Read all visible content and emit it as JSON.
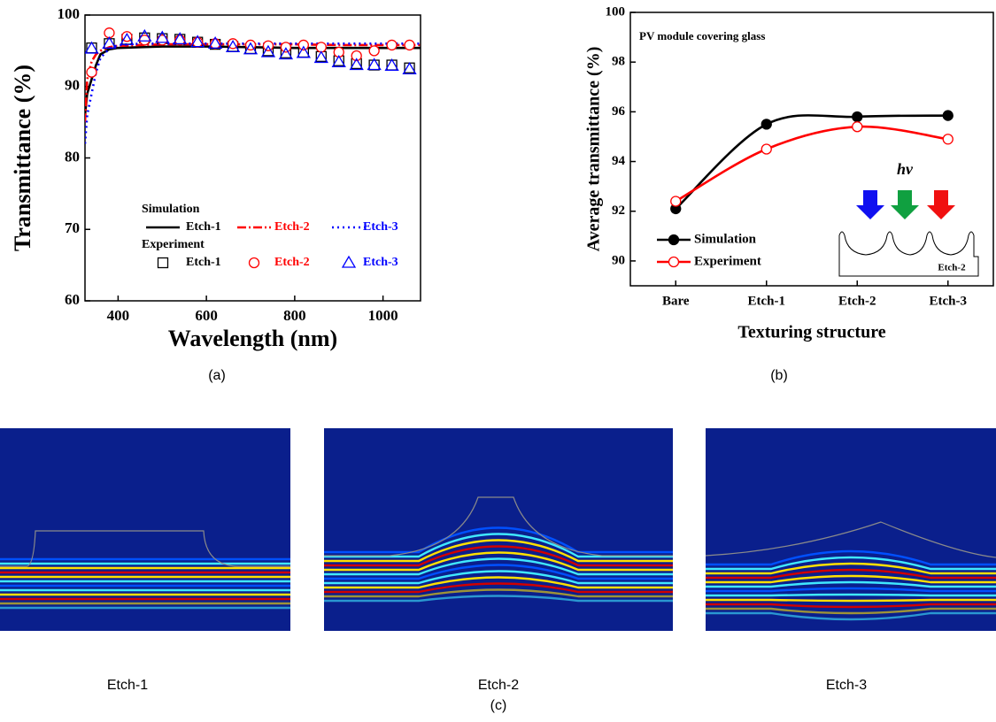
{
  "chart_data": [
    {
      "type": "line",
      "caption": "(a)",
      "x_label": "Wavelength (nm)",
      "y_label": "Transmittance (%)",
      "xlim": [
        325,
        1085
      ],
      "xticks": [
        400,
        600,
        800,
        1000
      ],
      "ylim": [
        60,
        100
      ],
      "yticks": [
        60,
        70,
        80,
        90,
        100
      ],
      "legend_position": "lower center",
      "series_groups": [
        {
          "name": "Simulation",
          "type": "line",
          "x": [
            325,
            330,
            340,
            350,
            360,
            380,
            400,
            450,
            500,
            600,
            700,
            800,
            900,
            1000,
            1085
          ],
          "series": [
            {
              "name": "Etch-1",
              "color": "#000000",
              "dash": "solid",
              "values": [
                86,
                89,
                91,
                93,
                94.5,
                95.2,
                95.4,
                95.5,
                95.6,
                95.6,
                95.5,
                95.4,
                95.4,
                95.4,
                95.4
              ]
            },
            {
              "name": "Etch-2",
              "color": "#ff0000",
              "dash": "dashdot",
              "values": [
                85,
                91,
                93.5,
                94.5,
                95,
                95.5,
                95.7,
                95.8,
                95.9,
                95.9,
                95.9,
                95.9,
                95.8,
                95.8,
                95.8
              ]
            },
            {
              "name": "Etch-3",
              "color": "#0000ff",
              "dash": "dot",
              "values": [
                82,
                86,
                89,
                92,
                94,
                95.3,
                95.8,
                96,
                96,
                96,
                96,
                96,
                96,
                96,
                96
              ]
            }
          ]
        },
        {
          "name": "Experiment",
          "type": "scatter",
          "x": [
            340,
            380,
            420,
            460,
            500,
            540,
            580,
            620,
            660,
            700,
            740,
            780,
            820,
            860,
            900,
            940,
            980,
            1020,
            1060
          ],
          "series": [
            {
              "name": "Etch-1",
              "color": "#000000",
              "marker": "square",
              "values": [
                95.4,
                96,
                96.6,
                96.8,
                96.7,
                96.6,
                96.2,
                95.9,
                95.6,
                95.3,
                95,
                94.7,
                94.8,
                94.2,
                93.6,
                93.2,
                93,
                93,
                92.6
              ]
            },
            {
              "name": "Etch-2",
              "color": "#ff0000",
              "marker": "circle",
              "values": [
                92,
                97.5,
                97,
                96.5,
                96.5,
                96.5,
                96.2,
                96,
                96,
                95.8,
                95.7,
                95.5,
                95.8,
                95.5,
                94.8,
                94.3,
                95,
                95.8,
                95.8
              ]
            },
            {
              "name": "Etch-3",
              "color": "#0000ff",
              "marker": "triangle",
              "values": [
                95.3,
                96,
                96.5,
                97,
                96.8,
                96.6,
                96.2,
                96,
                95.5,
                95.2,
                94.8,
                94.5,
                94.7,
                94,
                93.4,
                93,
                93,
                92.9,
                92.4
              ]
            }
          ]
        }
      ]
    },
    {
      "type": "line",
      "caption": "(b)",
      "x_label": "Texturing structure",
      "y_label": "Average transmittance (%)",
      "categories": [
        "Bare",
        "Etch-1",
        "Etch-2",
        "Etch-3"
      ],
      "ylim": [
        89,
        100
      ],
      "yticks": [
        90,
        92,
        94,
        96,
        98,
        100
      ],
      "curve": "smooth",
      "legend_position": "lower left",
      "annotations": [
        "PV module covering glass",
        "hv",
        "Etch-2"
      ],
      "series": [
        {
          "name": "Simulation",
          "color": "#000000",
          "marker": "filled-circle",
          "values": [
            92.1,
            95.5,
            95.8,
            95.85
          ]
        },
        {
          "name": "Experiment",
          "color": "#ff0000",
          "marker": "circle",
          "values": [
            92.4,
            94.5,
            95.4,
            94.9
          ]
        }
      ]
    }
  ],
  "figure_c": {
    "labels": [
      "Etch-1",
      "Etch-2",
      "Etch-3"
    ],
    "caption": "(c)"
  }
}
